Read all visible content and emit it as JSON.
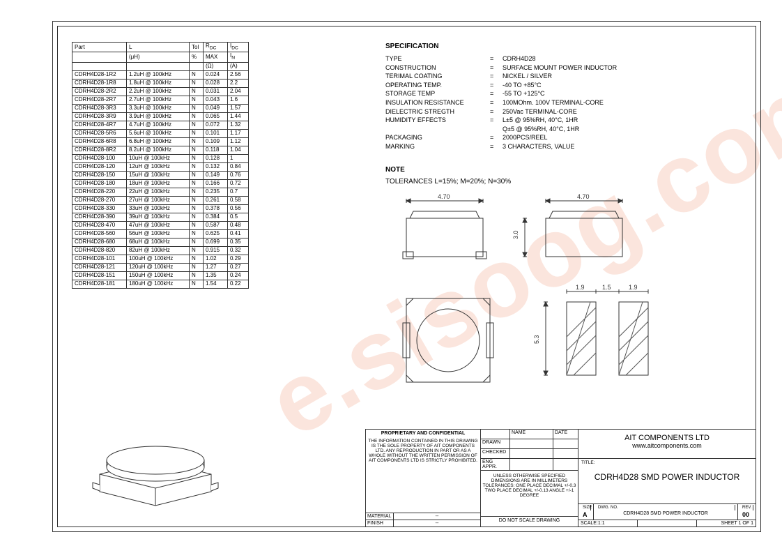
{
  "watermark": "e.sisoog.com",
  "spec": {
    "heading": "SPECIFICATION",
    "rows": [
      {
        "k": "TYPE",
        "v": "CDRH4D28"
      },
      {
        "k": "CONSTRUCTION",
        "v": "SURFACE MOUNT POWER INDUCTOR"
      },
      {
        "k": "TERIMAL COATING",
        "v": "NICKEL / SILVER"
      },
      {
        "k": "OPERATING TEMP.",
        "v": "-40 TO +85°C"
      },
      {
        "k": "STORAGE TEMP",
        "v": "-55 TO +125°C"
      },
      {
        "k": "INSULATION RESISTANCE",
        "v": "100MOhm. 100V  TERMINAL-CORE"
      },
      {
        "k": "DIELECTRIC STREGTH",
        "v": "250Vac TERMINAL-CORE"
      },
      {
        "k": "HUMIDITY EFFECTS",
        "v": "L±5 @ 95%RH, 40°C, 1HR"
      },
      {
        "k": "",
        "v": "Q±5 @ 95%RH, 40°C, 1HR"
      },
      {
        "k": "PACKAGING",
        "v": "2000PCS/REEL"
      },
      {
        "k": "MARKING",
        "v": "3 CHARACTERS, VALUE"
      }
    ]
  },
  "note": {
    "heading": "NOTE",
    "text": "TOLERANCES   L=15%; M=20%; N=30%"
  },
  "table": {
    "header1": [
      "Part",
      "L",
      "Tol",
      "R<sub>DC</sub>",
      "I<sub>DC</sub>"
    ],
    "header2": [
      "",
      "(μH)",
      "%",
      "MAX",
      "I<sub>N</sub>"
    ],
    "header3": [
      "",
      "",
      "",
      "(Ω)",
      "(A)"
    ],
    "col_widths": [
      "78px",
      "90px",
      "20px",
      "35px",
      "30px"
    ],
    "rows": [
      [
        "CDRH4D28-1R2",
        "1.2uH @ 100kHz",
        "N",
        "0.024",
        "2.56"
      ],
      [
        "CDRH4D28-1R8",
        "1.8uH @ 100kHz",
        "N",
        "0.028",
        "2.2"
      ],
      [
        "CDRH4D28-2R2",
        "2.2uH @ 100kHz",
        "N",
        "0.031",
        "2.04"
      ],
      [
        "CDRH4D28-2R7",
        "2.7uH @ 100kHz",
        "N",
        "0.043",
        "1.6"
      ],
      [
        "CDRH4D28-3R3",
        "3.3uH @ 100kHz",
        "N",
        "0.049",
        "1.57"
      ],
      [
        "CDRH4D28-3R9",
        "3.9uH @ 100kHz",
        "N",
        "0.065",
        "1.44"
      ],
      [
        "CDRH4D28-4R7",
        "4.7uH @ 100kHz",
        "N",
        "0.072",
        "1.32"
      ],
      [
        "CDRH4D28-5R6",
        "5.6uH @ 100kHz",
        "N",
        "0.101",
        "1.17"
      ],
      [
        "CDRH4D28-6R8",
        "6.8uH @ 100kHz",
        "N",
        "0.109",
        "1.12"
      ],
      [
        "CDRH4D28-8R2",
        "8.2uH @ 100kHz",
        "N",
        "0.118",
        "1.04"
      ],
      [
        "CDRH4D28-100",
        "10uH @ 100kHz",
        "N",
        "0.128",
        "1"
      ],
      [
        "CDRH4D28-120",
        "12uH @ 100kHz",
        "N",
        "0.132",
        "0.84"
      ],
      [
        "CDRH4D28-150",
        "15uH @ 100kHz",
        "N",
        "0.149",
        "0.76"
      ],
      [
        "CDRH4D28-180",
        "18uH @ 100kHz",
        "N",
        "0.166",
        "0.72"
      ],
      [
        "CDRH4D28-220",
        "22uH @ 100kHz",
        "N",
        "0.235",
        "0.7"
      ],
      [
        "CDRH4D28-270",
        "27uH @ 100kHz",
        "N",
        "0.261",
        "0.58"
      ],
      [
        "CDRH4D28-330",
        "33uH @ 100kHz",
        "N",
        "0.378",
        "0.56"
      ],
      [
        "CDRH4D28-390",
        "39uH @ 100kHz",
        "N",
        "0.384",
        "0.5"
      ],
      [
        "CDRH4D28-470",
        "47uH @ 100kHz",
        "N",
        "0.587",
        "0.48"
      ],
      [
        "CDRH4D28-560",
        "56uH @ 100kHz",
        "N",
        "0.625",
        "0.41"
      ],
      [
        "CDRH4D28-680",
        "68uH @ 100kHz",
        "N",
        "0.699",
        "0.35"
      ],
      [
        "CDRH4D28-820",
        "82uH @ 100kHz",
        "N",
        "0.915",
        "0.32"
      ],
      [
        "CDRH4D28-101",
        "100uH @ 100kHz",
        "N",
        "1.02",
        "0.29"
      ],
      [
        "CDRH4D28-121",
        "120uH @ 100kHz",
        "N",
        "1.27",
        "0.27"
      ],
      [
        "CDRH4D28-151",
        "150uH @ 100kHz",
        "N",
        "1.35",
        "0.24"
      ],
      [
        "CDRH4D28-181",
        "180uH @ 100kHz",
        "N",
        "1.54",
        "0.22"
      ]
    ]
  },
  "dimensions": {
    "top_w": "4.70",
    "top_w2": "4.70",
    "side_h": "3.0",
    "pad_h": "5.3",
    "pad_a": "1.9",
    "pad_b": "1.5",
    "pad_c": "1.9",
    "stroke": "#333333",
    "fill": "#ffffff",
    "hatch": "#555555"
  },
  "titleblock": {
    "proprietary_head": "PROPRIETARY AND CONFIDENTIAL",
    "proprietary_body": "THE INFORMATION CONTAINED IN THIS DRAWING IS THE SOLE PROPERTY OF AIT COMPONENTS LTD. ANY REPRODUCTION IN PART OR AS A WHOLE WITHOUT THE WRITTEN PERMISSION OF AIT COMPONENTS LTD IS STRICTLY PROHIBITED.",
    "material_lab": "MATERIAL",
    "material_val": "--",
    "finish_lab": "FINISH",
    "finish_val": "--",
    "name_h": "NAME",
    "date_h": "DATE",
    "drawn": "DRAWN",
    "checked": "CHECKED",
    "engappr": "ENG APPR.",
    "tol_text": "UNLESS OTHERWISE SPECIFIED DIMENSIONS ARE IN MILLIMETERS TOLERANCES: ONE PLACE DECIMAL  +/-0.3 TWO PLACE DECIMAL  +/-0.13 ANGLE +/-1 DEGREE",
    "dns": "DO NOT SCALE DRAWING",
    "company1": "AIT COMPONENTS LTD",
    "company2": "www.aitcomponents.com",
    "title_lab": "TITLE:",
    "title_val": "CDRH4D28 SMD POWER INDUCTOR",
    "size_lab": "SIZE",
    "size_val": "A",
    "dwg_lab": "DWG. NO.",
    "dwg_val": "CDRH4D28 SMD POWER INDUCTOR",
    "rev_lab": "REV.",
    "rev_val": "00",
    "scale_lab": "SCALE:1:1",
    "sheet_lab": "SHEET 1 OF 1"
  }
}
